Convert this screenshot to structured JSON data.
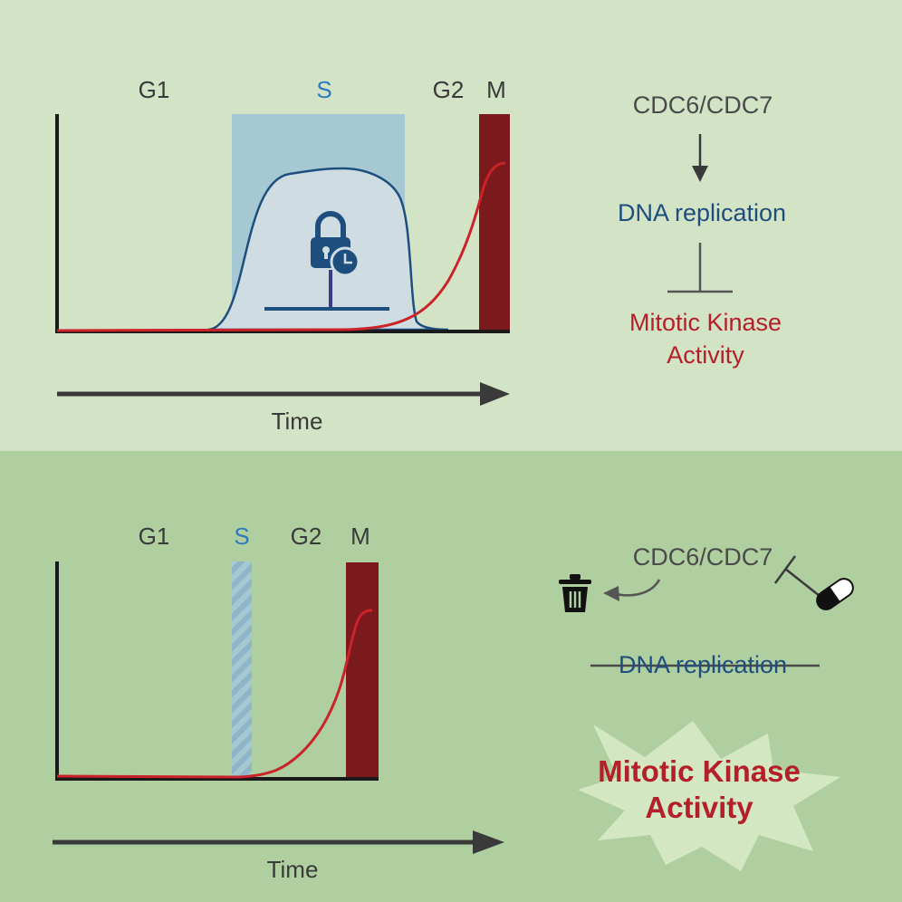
{
  "top": {
    "phases": {
      "g1": "G1",
      "s": "S",
      "g2": "G2",
      "m": "M"
    },
    "axis_label": "Time",
    "pathway": {
      "upstream": "CDC6/CDC7",
      "middle": "DNA replication",
      "target_line1": "Mitotic Kinase",
      "target_line2": "Activity"
    }
  },
  "bottom": {
    "phases": {
      "g1": "G1",
      "s": "S",
      "g2": "G2",
      "m": "M"
    },
    "axis_label": "Time",
    "pathway": {
      "upstream": "CDC6/CDC7",
      "middle": "DNA replication",
      "target_line1": "Mitotic Kinase",
      "target_line2": "Activity"
    }
  },
  "colors": {
    "top_bg": "#d3e3c6",
    "bottom_bg": "#b0cfa0",
    "s_phase": "#a6c8d2",
    "m_phase": "#7a1a1c",
    "kinase_curve": "#cc2229",
    "replication_outline": "#1d4e7e",
    "lock": "#1d4e7e"
  },
  "icons": [
    "lock-icon",
    "clock-icon",
    "trash-icon",
    "pill-icon"
  ]
}
